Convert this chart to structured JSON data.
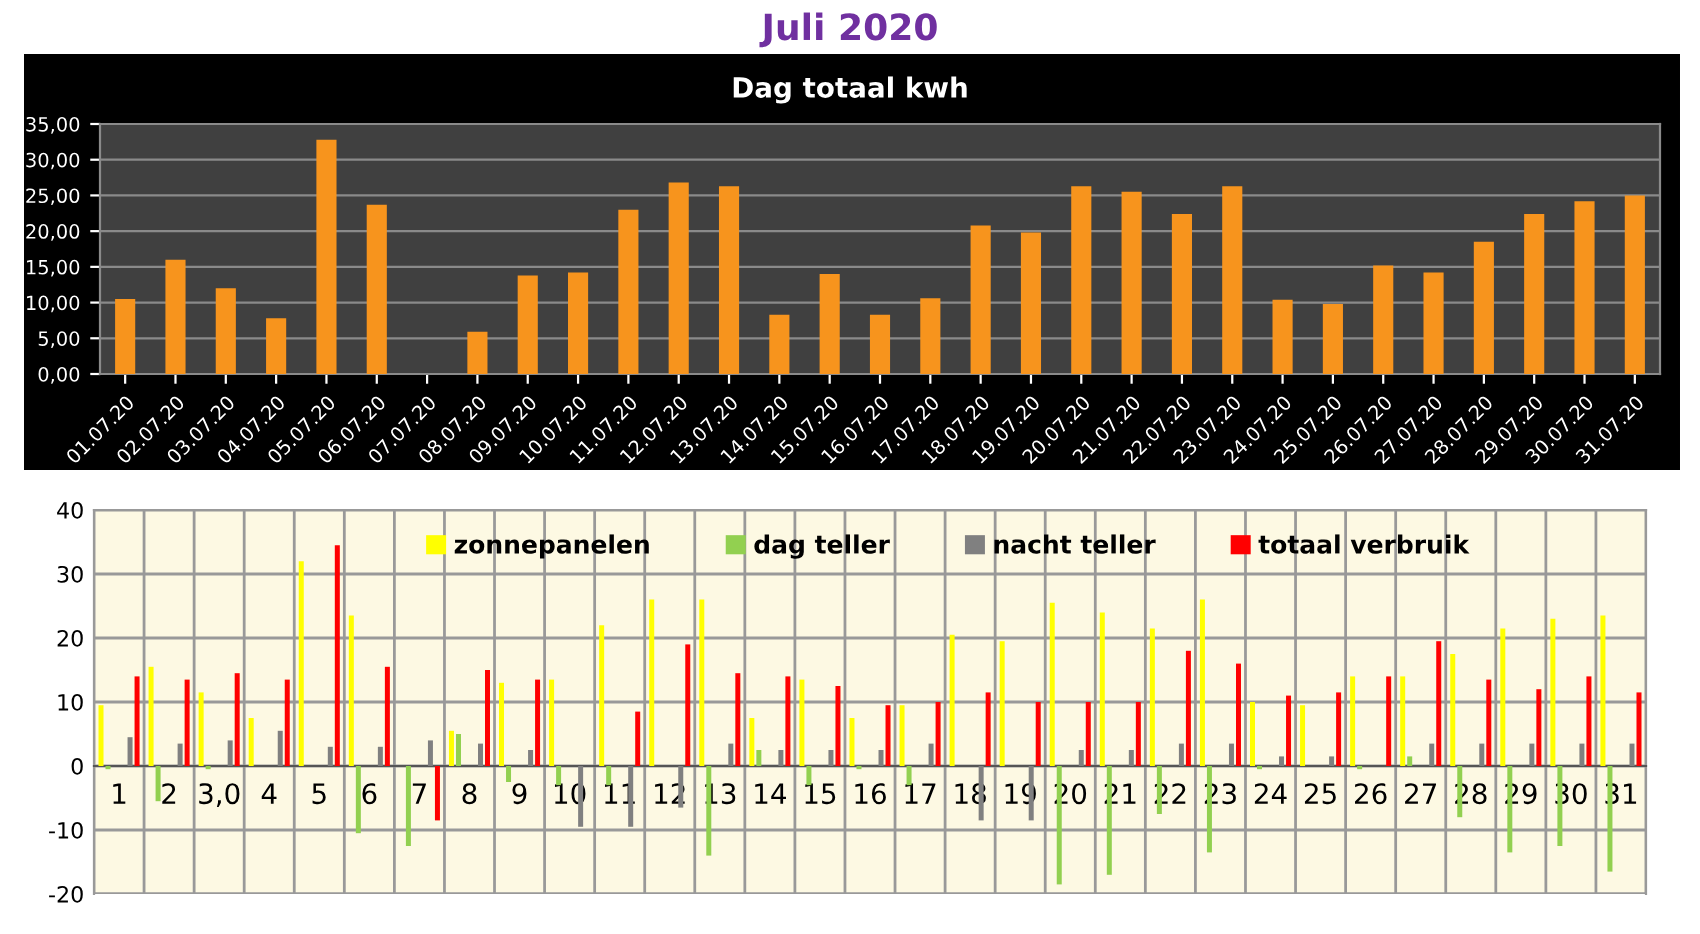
{
  "chart_data": [
    {
      "type": "bar",
      "title": "Juli 2020",
      "subtitle": "Dag totaal kwh",
      "categories": [
        "01.07.20",
        "02.07.20",
        "03.07.20",
        "04.07.20",
        "05.07.20",
        "06.07.20",
        "07.07.20",
        "08.07.20",
        "09.07.20",
        "10.07.20",
        "11.07.20",
        "12.07.20",
        "13.07.20",
        "14.07.20",
        "15.07.20",
        "16.07.20",
        "17.07.20",
        "18.07.20",
        "19.07.20",
        "20.07.20",
        "21.07.20",
        "22.07.20",
        "23.07.20",
        "24.07.20",
        "25.07.20",
        "26.07.20",
        "27.07.20",
        "28.07.20",
        "29.07.20",
        "30.07.20",
        "31.07.20"
      ],
      "values": [
        10.5,
        16,
        12,
        7.8,
        32.8,
        23.7,
        0,
        5.9,
        13.8,
        14.2,
        23,
        26.8,
        26.3,
        8.3,
        14,
        8.3,
        10.6,
        20.8,
        19.8,
        26.3,
        25.5,
        22.4,
        26.3,
        10.4,
        9.8,
        15.2,
        14.2,
        18.5,
        22.4,
        24.2,
        25
      ],
      "color": "#f7941d",
      "ylim": [
        0,
        35
      ],
      "yticks": [
        {
          "value": 0,
          "label": "0,00"
        },
        {
          "value": 5,
          "label": "5,00"
        },
        {
          "value": 10,
          "label": "10,00"
        },
        {
          "value": 15,
          "label": "15,00"
        },
        {
          "value": 20,
          "label": "20,00"
        },
        {
          "value": 25,
          "label": "25,00"
        },
        {
          "value": 30,
          "label": "30,00"
        },
        {
          "value": 35,
          "label": "35,00"
        }
      ],
      "grid": "y"
    },
    {
      "type": "bar",
      "categories": [
        "1",
        "2",
        "3,0",
        "4",
        "5",
        "6",
        "7",
        "8",
        "9",
        "10",
        "11",
        "12",
        "13",
        "14",
        "15",
        "16",
        "17",
        "18",
        "19",
        "20",
        "21",
        "22",
        "23",
        "24",
        "25",
        "26",
        "27",
        "28",
        "29",
        "30",
        "31"
      ],
      "series": [
        {
          "name": "zonnepanelen",
          "color": "#ffff00",
          "values": [
            9.5,
            15.5,
            11.5,
            7.5,
            32,
            23.5,
            0,
            5.5,
            13,
            13.5,
            22,
            26,
            26,
            7.5,
            13.5,
            7.5,
            9.5,
            20.5,
            19.5,
            25.5,
            24,
            21.5,
            26,
            10,
            9.5,
            14,
            14,
            17.5,
            21.5,
            23,
            23.5
          ]
        },
        {
          "name": "dag teller",
          "color": "#92d050",
          "values": [
            -0.5,
            -5.5,
            -0.5,
            0,
            0,
            -10.5,
            -12.5,
            5,
            -2.5,
            -3,
            -3,
            0,
            -14,
            2.5,
            -3,
            -0.5,
            -3,
            0,
            0,
            -18.5,
            -17,
            -7.5,
            -13.5,
            -0.5,
            0,
            -0.5,
            1.5,
            -8,
            -13.5,
            -12.5,
            -16.5
          ]
        },
        {
          "name": "nacht teller",
          "color": "#808080",
          "values": [
            4.5,
            3.5,
            4,
            5.5,
            3,
            3,
            4,
            3.5,
            2.5,
            -9.5,
            -9.5,
            -6.5,
            3.5,
            2.5,
            2.5,
            2.5,
            3.5,
            -8.5,
            -8.5,
            2.5,
            2.5,
            3.5,
            3.5,
            1.5,
            1.5,
            0,
            3.5,
            3.5,
            3.5,
            3.5,
            3.5
          ]
        },
        {
          "name": "totaal verbruik",
          "color": "#ff0000",
          "values": [
            14,
            13.5,
            14.5,
            13.5,
            34.5,
            15.5,
            -8.5,
            15,
            13.5,
            0,
            8.5,
            19,
            14.5,
            14,
            12.5,
            9.5,
            10,
            11.5,
            10,
            10,
            10,
            18,
            16,
            11,
            11.5,
            14,
            19.5,
            13.5,
            12,
            14,
            11.5
          ]
        }
      ],
      "ylim": [
        -20,
        40
      ],
      "yticks": [
        -20,
        -10,
        0,
        10,
        20,
        30,
        40
      ],
      "grid": true,
      "legend": "top"
    }
  ]
}
